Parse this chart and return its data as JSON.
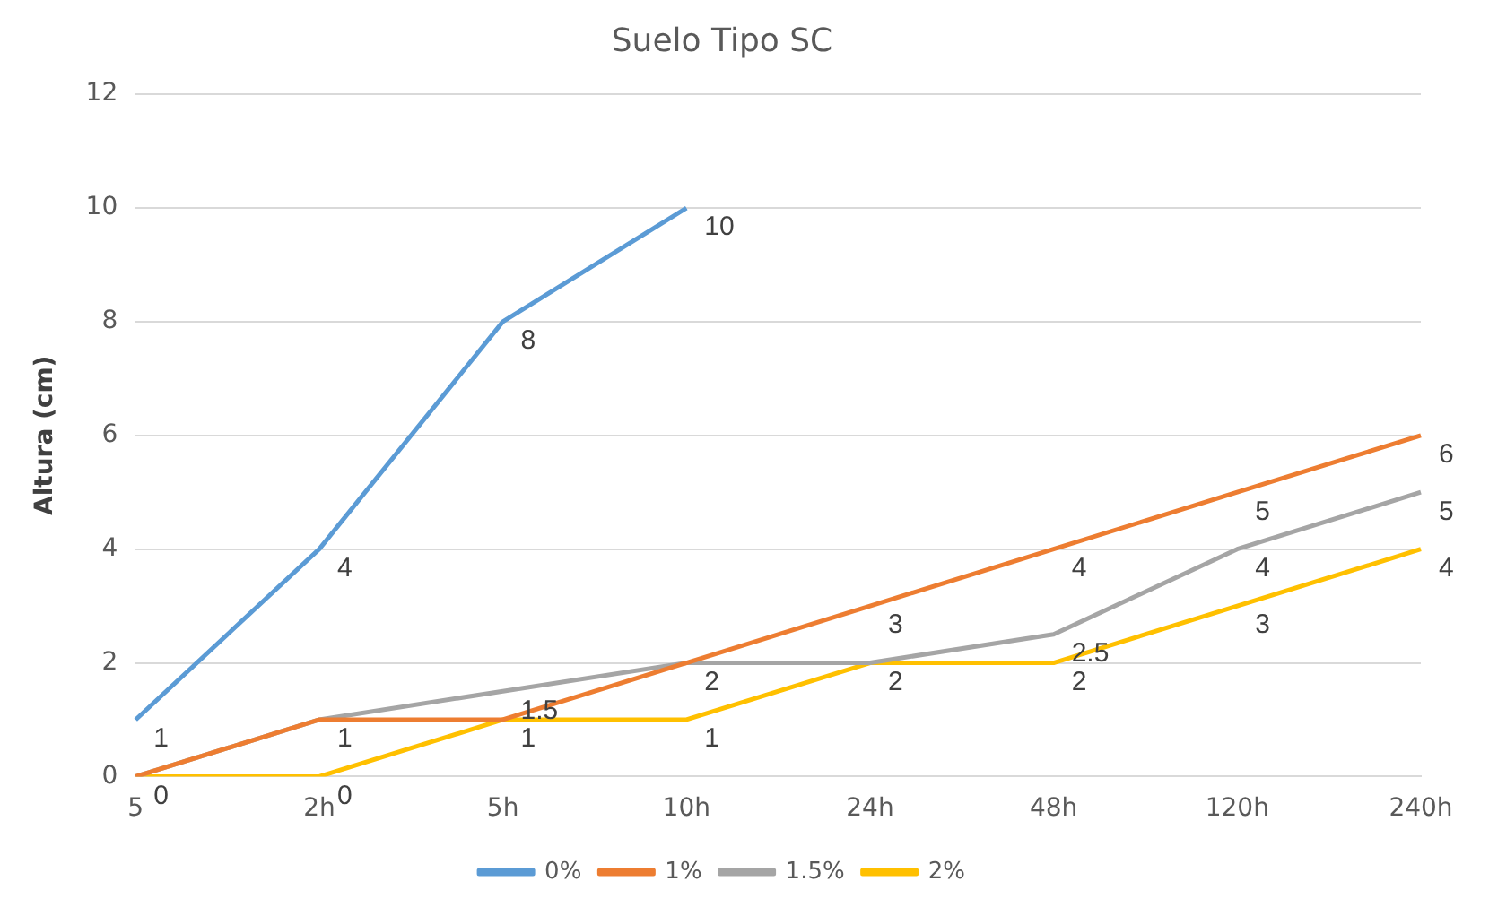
{
  "chart_data": {
    "type": "line",
    "title": "Suelo Tipo SC",
    "ylabel": "Altura (cm)",
    "categories": [
      "5",
      "2h",
      "5h",
      "10h",
      "24h",
      "48h",
      "120h",
      "240h"
    ],
    "series": [
      {
        "name": "0%",
        "color": "#5b9bd5",
        "values": [
          1,
          4,
          8,
          10,
          null,
          null,
          null,
          null
        ]
      },
      {
        "name": "1%",
        "color": "#ed7d31",
        "values": [
          0,
          1,
          1,
          2,
          3,
          4,
          5,
          6
        ]
      },
      {
        "name": "1.5%",
        "color": "#a5a5a5",
        "values": [
          0,
          1,
          1.5,
          2,
          2,
          2.5,
          4,
          5
        ],
        "value_labels": [
          null,
          null,
          "1.5",
          null,
          "2",
          "2.5",
          "4",
          "5"
        ]
      },
      {
        "name": "2%",
        "color": "#ffc000",
        "values": [
          0,
          0,
          1,
          1,
          2,
          2,
          3,
          4
        ],
        "value_labels": [
          null,
          "0",
          null,
          "1",
          null,
          "2",
          "3",
          "4"
        ]
      }
    ],
    "ylim": [
      0,
      12
    ],
    "yticks": [
      0,
      2,
      4,
      6,
      8,
      10,
      12
    ],
    "grid": "y",
    "legend": "bottom",
    "data_labels": true,
    "marker": "none",
    "line_style": "solid"
  }
}
